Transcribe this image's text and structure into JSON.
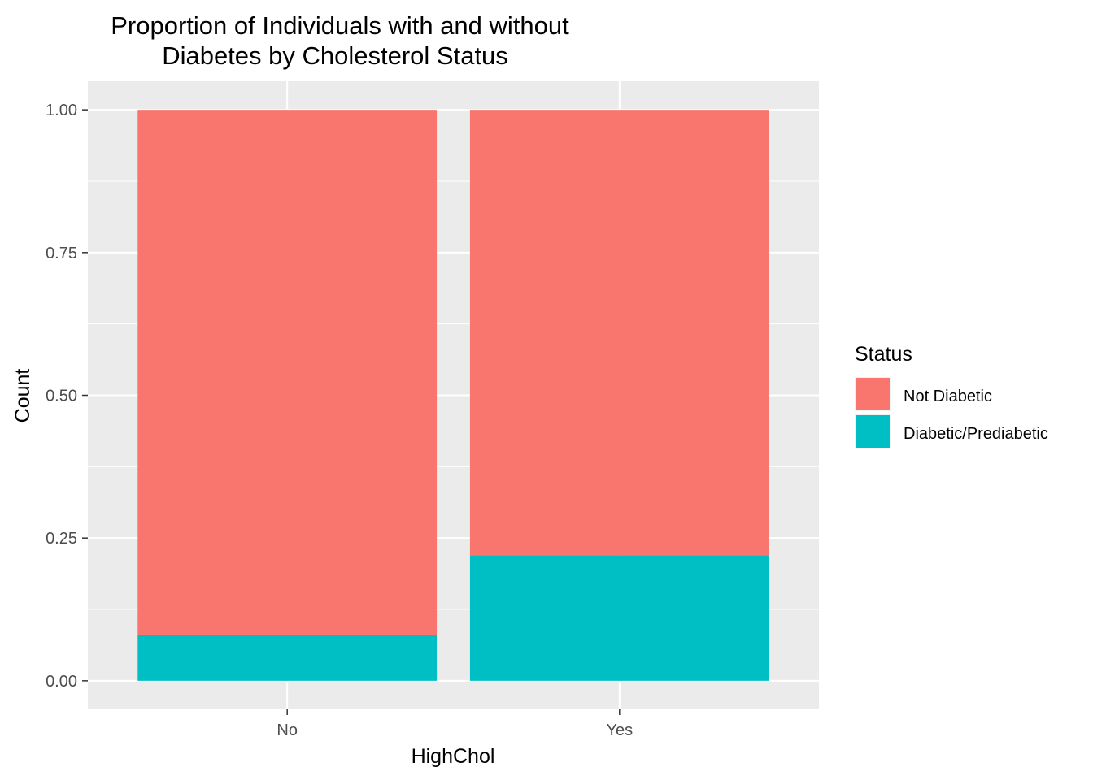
{
  "chart_data": {
    "type": "bar",
    "stacked": true,
    "title_lines": [
      "Proportion of Individuals with and without",
      "Diabetes by Cholesterol Status"
    ],
    "xlabel": "HighChol",
    "ylabel": "Count",
    "categories": [
      "No",
      "Yes"
    ],
    "ylim": [
      -0.05,
      1.05
    ],
    "yticks": [
      0.0,
      0.25,
      0.5,
      0.75,
      1.0
    ],
    "ytick_labels": [
      "0.00",
      "0.25",
      "0.50",
      "0.75",
      "1.00"
    ],
    "grid": true,
    "legend": {
      "title": "Status",
      "placement": "right"
    },
    "series": [
      {
        "name": "Diabetic/Prediabetic",
        "values": [
          0.08,
          0.22
        ],
        "color": "#00BFC4"
      },
      {
        "name": "Not Diabetic",
        "values": [
          0.92,
          0.78
        ],
        "color": "#F8766D"
      }
    ],
    "legend_order": [
      "Not Diabetic",
      "Diabetic/Prediabetic"
    ],
    "panel_background": "#EBEBEB",
    "grid_color": "#FFFFFF"
  }
}
